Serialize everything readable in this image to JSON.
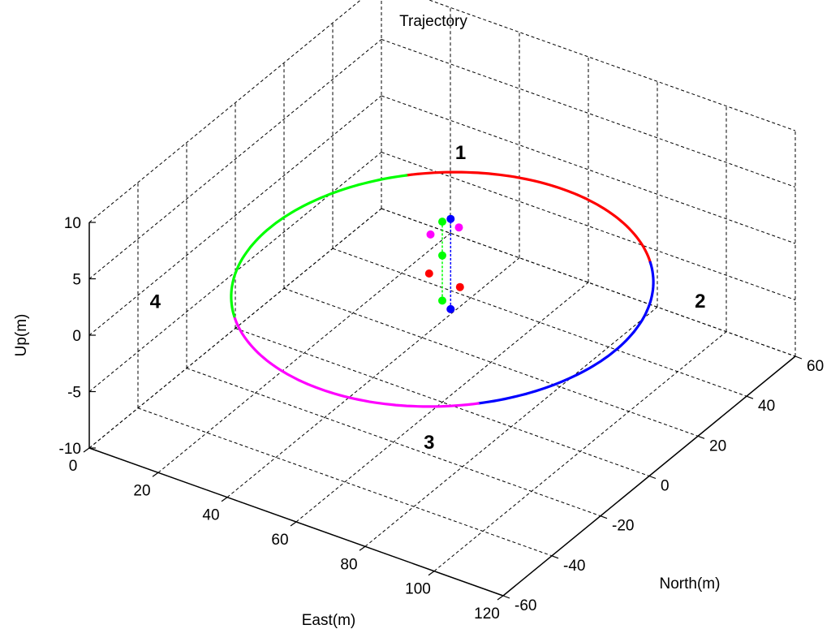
{
  "chart_data": {
    "type": "line3d",
    "title": "Trajectory",
    "xlabel": "East(m)",
    "ylabel": "North(m)",
    "zlabel": "Up(m)",
    "xlim": [
      0,
      120
    ],
    "ylim": [
      -60,
      60
    ],
    "zlim": [
      -10,
      10
    ],
    "xticks": [
      0,
      20,
      40,
      60,
      80,
      100,
      120
    ],
    "yticks": [
      -60,
      -40,
      -20,
      0,
      20,
      40,
      60
    ],
    "zticks": [
      -10,
      -5,
      0,
      5,
      10
    ],
    "grid": true,
    "trajectory": {
      "center": [
        60,
        0,
        0
      ],
      "radius": 50,
      "segments": [
        {
          "label": "1",
          "color": "#ff0000",
          "from_deg": 45,
          "to_deg": 135
        },
        {
          "label": "2",
          "color": "#0000ff",
          "from_deg": -45,
          "to_deg": 45
        },
        {
          "label": "3",
          "color": "#ff00ff",
          "from_deg": -135,
          "to_deg": -45
        },
        {
          "label": "4",
          "color": "#00ff00",
          "from_deg": 135,
          "to_deg": 225
        }
      ]
    },
    "annotations": [
      {
        "text": "1",
        "at": [
          30,
          50,
          0
        ]
      },
      {
        "text": "2",
        "at": [
          115,
          28,
          0
        ]
      },
      {
        "text": "3",
        "at": [
          95,
          -55,
          0
        ]
      },
      {
        "text": "4",
        "at": [
          5,
          -40,
          0
        ]
      }
    ],
    "markers": [
      {
        "color": "#ff00ff",
        "point": [
          58,
          -2,
          5
        ]
      },
      {
        "color": "#ff00ff",
        "point": [
          62,
          4,
          5
        ]
      },
      {
        "color": "#ff00ff",
        "point": [
          61,
          2,
          -2
        ]
      },
      {
        "color": "#ff0000",
        "point": [
          59,
          -4,
          2
        ]
      },
      {
        "color": "#ff0000",
        "point": [
          63,
          3,
          0
        ]
      },
      {
        "color": "#00ff00",
        "point": [
          60,
          0,
          6
        ]
      },
      {
        "color": "#00ff00",
        "point": [
          60,
          0,
          3
        ]
      },
      {
        "color": "#00ff00",
        "point": [
          60,
          0,
          -1
        ]
      },
      {
        "color": "#0000ff",
        "point": [
          61,
          2,
          6
        ]
      },
      {
        "color": "#0000ff",
        "point": [
          61,
          2,
          -2
        ]
      }
    ],
    "vertical_lines": [
      {
        "color": "#00ff00",
        "from": [
          60,
          0,
          -1
        ],
        "to": [
          60,
          0,
          6
        ]
      },
      {
        "color": "#0000ff",
        "from": [
          61,
          2,
          -2
        ],
        "to": [
          61,
          2,
          6
        ]
      }
    ]
  }
}
